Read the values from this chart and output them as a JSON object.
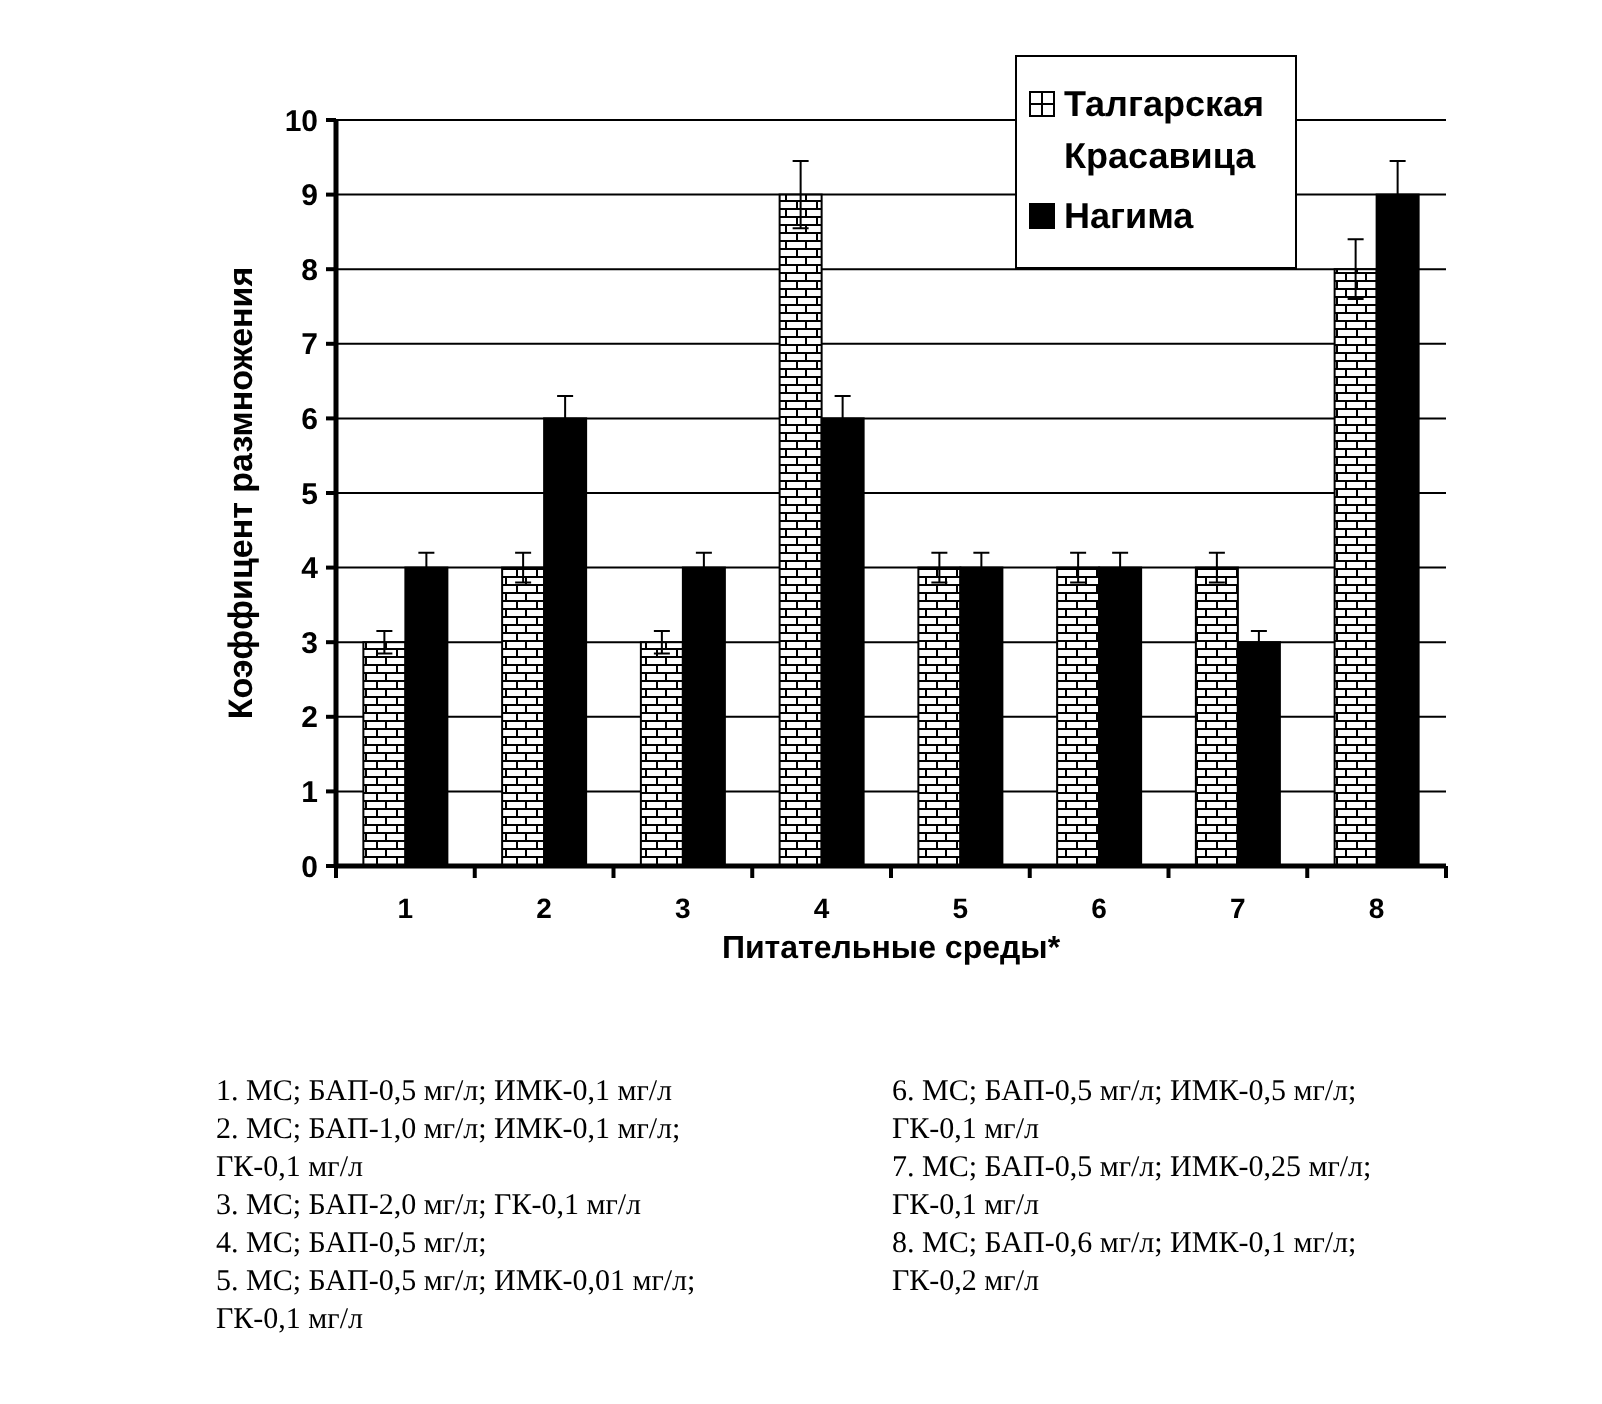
{
  "chart_data": {
    "type": "bar",
    "xlabel": "Питательные среды*",
    "ylabel": "Коэффицент размножения",
    "categories": [
      "1",
      "2",
      "3",
      "4",
      "5",
      "6",
      "7",
      "8"
    ],
    "series": [
      {
        "name": "Талгарская Красавица",
        "color": "#ffffff",
        "values": [
          3,
          4,
          3,
          9,
          4,
          4,
          4,
          8
        ],
        "errors": [
          0.15,
          0.2,
          0.15,
          0.45,
          0.2,
          0.2,
          0.2,
          0.4
        ]
      },
      {
        "name": "Нагима",
        "color": "#000000",
        "values": [
          4,
          6,
          4,
          6,
          4,
          4,
          3,
          9
        ],
        "errors": [
          0.2,
          0.3,
          0.2,
          0.3,
          0.2,
          0.2,
          0.15,
          0.45
        ]
      }
    ],
    "ylim": [
      0,
      10
    ],
    "yticks": [
      0,
      1,
      2,
      3,
      4,
      5,
      6,
      7,
      8,
      9,
      10
    ],
    "grid": "y",
    "legend": "top right",
    "annotations": [
      "1. МС; БАП-0,5 мг/л; ИМК-0,1 мг/л",
      "2. МС; БАП-1,0 мг/л; ИМК-0,1 мг/л; ГК-0,1 мг/л",
      "3. МС; БАП-2,0 мг/л; ГК-0,1 мг/л",
      "4. МС; БАП-0,5 мг/л;",
      "5. МС; БАП-0,5 мг/л; ИМК-0,01 мг/л; ГК-0,1 мг/л",
      "6. МС; БАП-0,5 мг/л; ИМК-0,5 мг/л; ГК-0,1 мг/л",
      "7. МС; БАП-0,5 мг/л; ИМК-0,25 мг/л; ГК-0,1 мг/л",
      "8. МС; БАП-0,6 мг/л; ИМК-0,1 мг/л; ГК-0,2 мг/л"
    ]
  }
}
